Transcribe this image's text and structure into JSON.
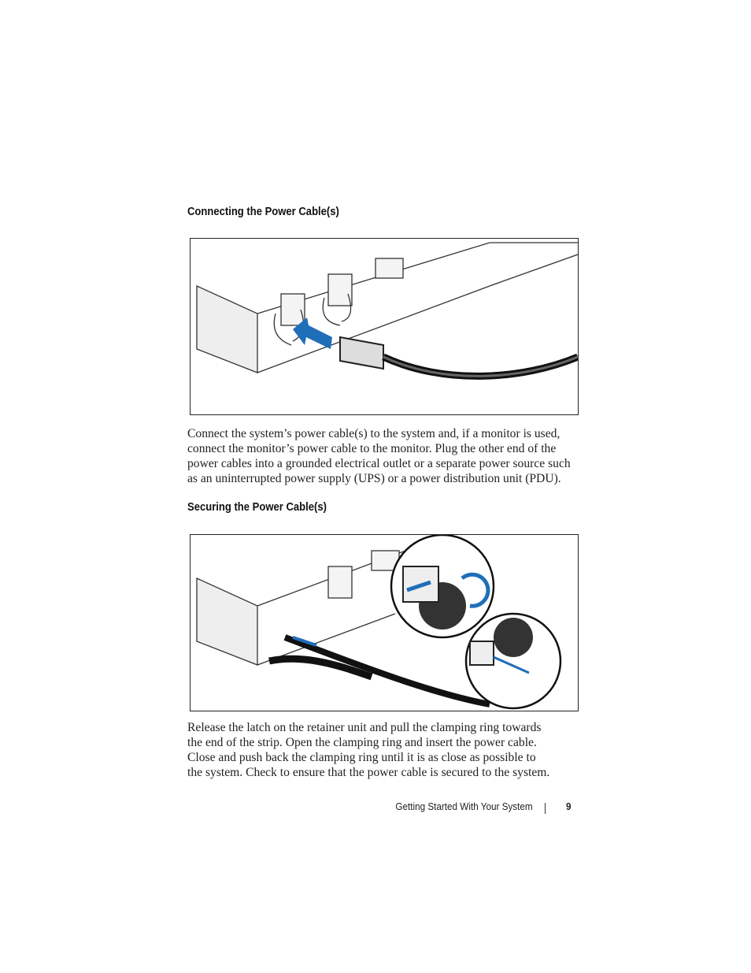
{
  "sections": [
    {
      "heading": "Connecting the Power Cable(s)",
      "lines": [
        "Connect the system’s power cable(s) to the system and, if a monitor is used,",
        "connect the monitor’s power cable to the monitor. Plug the other end of the",
        "power cables into a grounded electrical outlet or a separate power source such",
        "as an uninterrupted power supply (UPS) or a power distribution unit (PDU)."
      ]
    },
    {
      "heading": "Securing the Power Cable(s)",
      "lines": [
        "Release the latch on the retainer unit and pull the clamping ring towards",
        "the end of the strip. Open the clamping ring and insert the power cable.",
        "Close and push back the clamping ring until it is as close as possible to",
        "the system. Check to ensure that the power cable is secured to the system."
      ]
    }
  ],
  "footer": {
    "title": "Getting Started With Your System",
    "page": "9"
  }
}
